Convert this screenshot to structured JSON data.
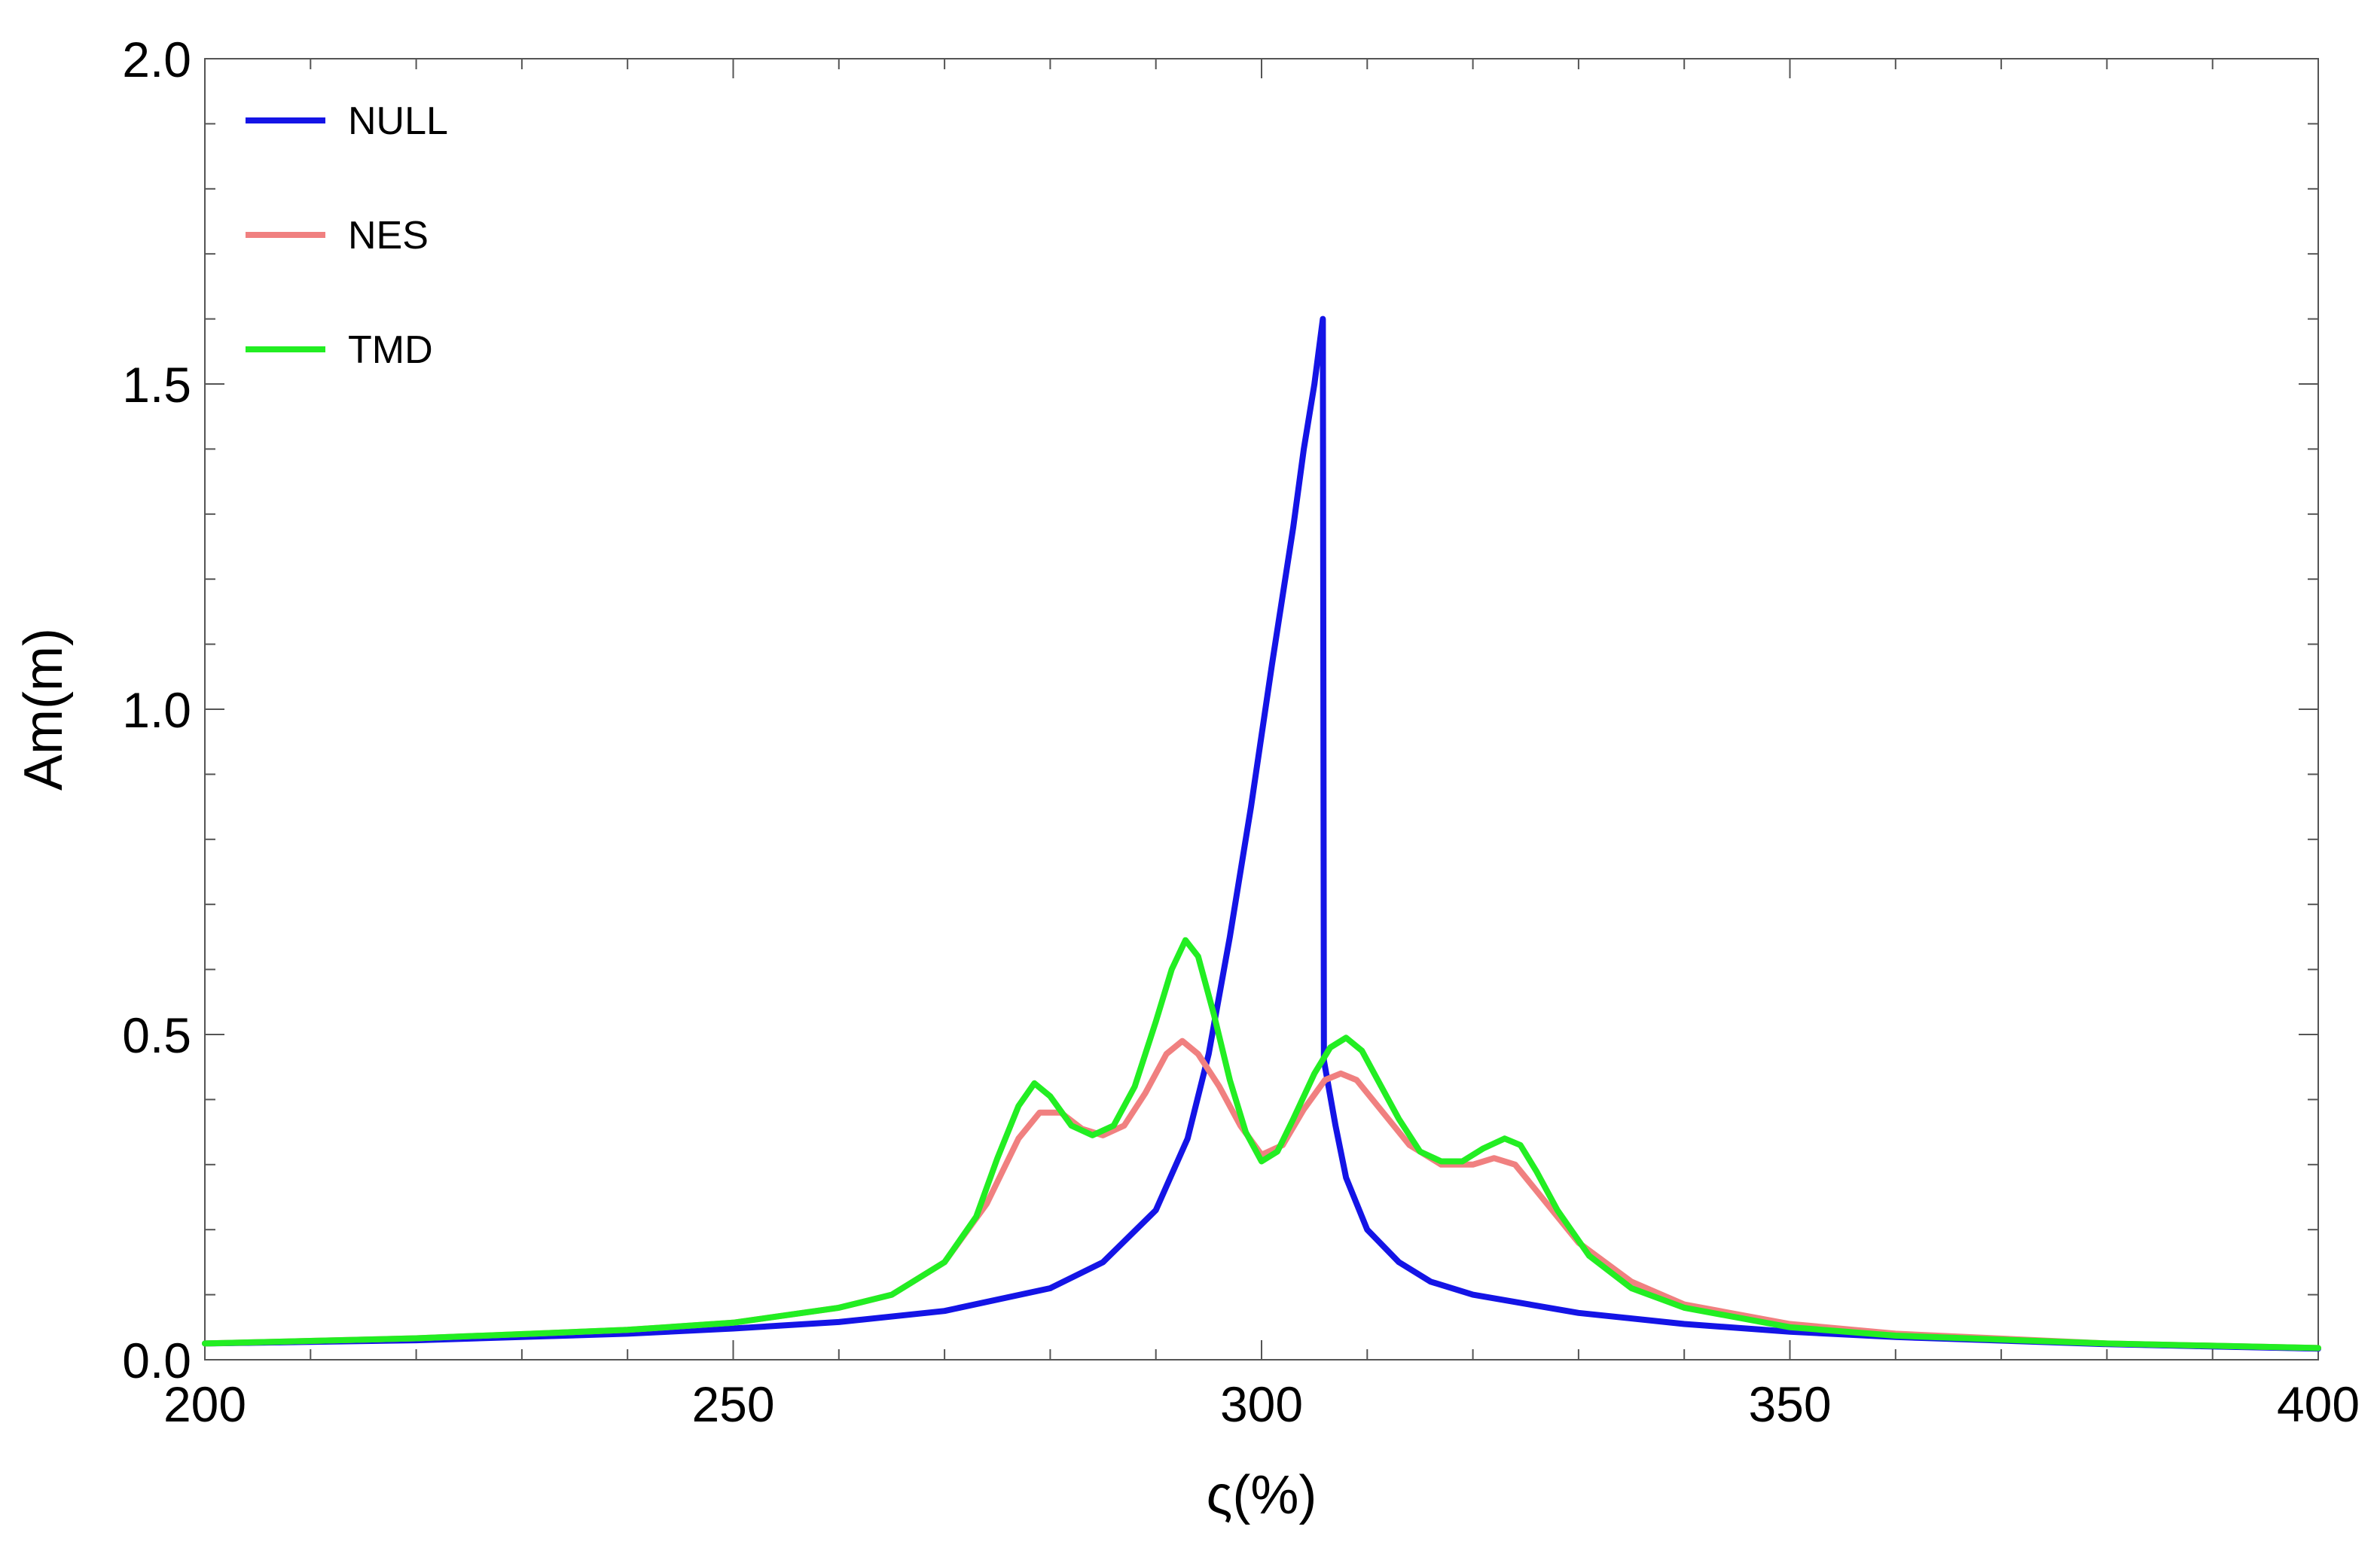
{
  "chart_data": {
    "type": "line",
    "xlabel": "ς(%)",
    "ylabel": "Am(m)",
    "xlim": [
      200,
      400
    ],
    "ylim": [
      0,
      2.0
    ],
    "x_ticks": [
      200,
      250,
      300,
      350,
      400
    ],
    "x_tick_labels": [
      "200",
      "250",
      "300",
      "350",
      "400"
    ],
    "y_ticks": [
      0,
      0.5,
      1.0,
      1.5,
      2.0
    ],
    "y_tick_labels": [
      "0.0",
      "0.5",
      "1.0",
      "1.5",
      "2.0"
    ],
    "grid": false,
    "legend_position": "top-left",
    "series": [
      {
        "name": "NULL",
        "color": "#1414e6",
        "points": [
          [
            200,
            0.025
          ],
          [
            220,
            0.03
          ],
          [
            240,
            0.04
          ],
          [
            250,
            0.048
          ],
          [
            260,
            0.058
          ],
          [
            270,
            0.075
          ],
          [
            280,
            0.11
          ],
          [
            285,
            0.15
          ],
          [
            290,
            0.23
          ],
          [
            293,
            0.34
          ],
          [
            295,
            0.47
          ],
          [
            297,
            0.65
          ],
          [
            299,
            0.85
          ],
          [
            301,
            1.07
          ],
          [
            303,
            1.28
          ],
          [
            304,
            1.4
          ],
          [
            305,
            1.5
          ],
          [
            305.8,
            1.6
          ],
          [
            305.9,
            0.46
          ],
          [
            307,
            0.36
          ],
          [
            308,
            0.28
          ],
          [
            310,
            0.2
          ],
          [
            313,
            0.15
          ],
          [
            316,
            0.12
          ],
          [
            320,
            0.1
          ],
          [
            330,
            0.072
          ],
          [
            340,
            0.055
          ],
          [
            350,
            0.043
          ],
          [
            360,
            0.035
          ],
          [
            380,
            0.024
          ],
          [
            400,
            0.017
          ]
        ]
      },
      {
        "name": "NES",
        "color": "#f08080",
        "points": [
          [
            200,
            0.025
          ],
          [
            220,
            0.033
          ],
          [
            240,
            0.046
          ],
          [
            250,
            0.057
          ],
          [
            260,
            0.08
          ],
          [
            265,
            0.1
          ],
          [
            270,
            0.15
          ],
          [
            274,
            0.24
          ],
          [
            277,
            0.34
          ],
          [
            279,
            0.38
          ],
          [
            281,
            0.38
          ],
          [
            283,
            0.355
          ],
          [
            285,
            0.345
          ],
          [
            287,
            0.36
          ],
          [
            289,
            0.41
          ],
          [
            291,
            0.47
          ],
          [
            292.5,
            0.49
          ],
          [
            294,
            0.47
          ],
          [
            296,
            0.42
          ],
          [
            298,
            0.36
          ],
          [
            300,
            0.315
          ],
          [
            302,
            0.33
          ],
          [
            304,
            0.385
          ],
          [
            306,
            0.43
          ],
          [
            307.5,
            0.44
          ],
          [
            309,
            0.43
          ],
          [
            311,
            0.39
          ],
          [
            314,
            0.33
          ],
          [
            317,
            0.3
          ],
          [
            320,
            0.3
          ],
          [
            322,
            0.31
          ],
          [
            324,
            0.3
          ],
          [
            326,
            0.26
          ],
          [
            330,
            0.18
          ],
          [
            335,
            0.12
          ],
          [
            340,
            0.085
          ],
          [
            350,
            0.055
          ],
          [
            360,
            0.04
          ],
          [
            380,
            0.025
          ],
          [
            400,
            0.018
          ]
        ]
      },
      {
        "name": "TMD",
        "color": "#22ee22",
        "points": [
          [
            200,
            0.025
          ],
          [
            220,
            0.033
          ],
          [
            240,
            0.046
          ],
          [
            250,
            0.057
          ],
          [
            260,
            0.08
          ],
          [
            265,
            0.1
          ],
          [
            270,
            0.15
          ],
          [
            273,
            0.22
          ],
          [
            275,
            0.31
          ],
          [
            277,
            0.39
          ],
          [
            278.5,
            0.425
          ],
          [
            280,
            0.405
          ],
          [
            282,
            0.36
          ],
          [
            284,
            0.345
          ],
          [
            286,
            0.36
          ],
          [
            288,
            0.42
          ],
          [
            290,
            0.52
          ],
          [
            291.5,
            0.6
          ],
          [
            292.8,
            0.645
          ],
          [
            294,
            0.62
          ],
          [
            295.5,
            0.53
          ],
          [
            297,
            0.43
          ],
          [
            298.5,
            0.35
          ],
          [
            300,
            0.305
          ],
          [
            301.5,
            0.32
          ],
          [
            303,
            0.37
          ],
          [
            305,
            0.44
          ],
          [
            306.5,
            0.48
          ],
          [
            308,
            0.495
          ],
          [
            309.5,
            0.475
          ],
          [
            311,
            0.43
          ],
          [
            313,
            0.37
          ],
          [
            315,
            0.32
          ],
          [
            317,
            0.305
          ],
          [
            319,
            0.305
          ],
          [
            321,
            0.325
          ],
          [
            323,
            0.34
          ],
          [
            324.5,
            0.33
          ],
          [
            326,
            0.29
          ],
          [
            328,
            0.23
          ],
          [
            331,
            0.16
          ],
          [
            335,
            0.11
          ],
          [
            340,
            0.08
          ],
          [
            350,
            0.05
          ],
          [
            360,
            0.037
          ],
          [
            380,
            0.025
          ],
          [
            400,
            0.018
          ]
        ]
      }
    ]
  }
}
